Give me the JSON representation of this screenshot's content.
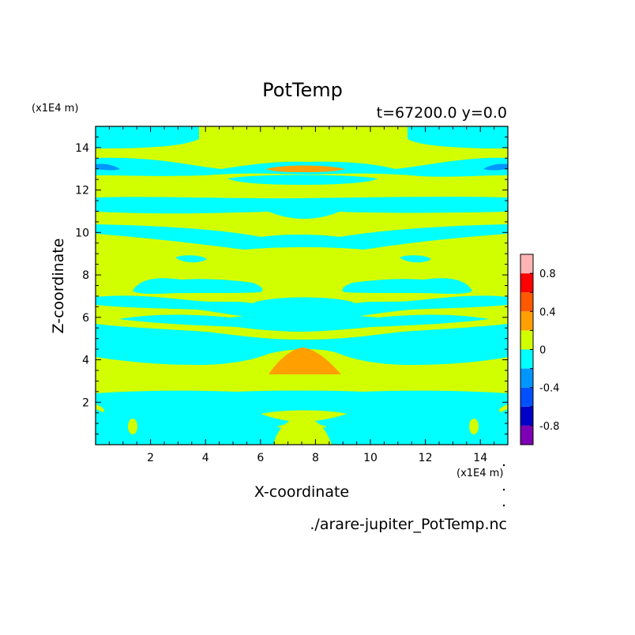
{
  "chart_data": {
    "type": "contour",
    "title": "PotTemp",
    "subtitle": "t=67200.0 y=0.0",
    "xlabel": "X-coordinate",
    "ylabel": "Z-coordinate",
    "x_unit": "(x1E4 m)",
    "y_unit": "(x1E4 m)",
    "source": "./arare-jupiter_PotTemp.nc",
    "xlim": [
      0,
      15
    ],
    "ylim": [
      0,
      15
    ],
    "x_ticks": [
      2,
      4,
      6,
      8,
      10,
      12,
      14
    ],
    "y_ticks": [
      2,
      4,
      6,
      8,
      10,
      12,
      14
    ],
    "colorbar": {
      "levels": [
        -1.0,
        -0.8,
        -0.6,
        -0.4,
        -0.2,
        0.0,
        0.2,
        0.4,
        0.6,
        0.8,
        1.0
      ],
      "colors": [
        "#7e00b4",
        "#0000c8",
        "#0050ff",
        "#0096ff",
        "#00ffff",
        "#d2ff00",
        "#ffa000",
        "#ff5a00",
        "#ff0000",
        "#ffb4b4"
      ],
      "tick_labels": [
        "-0.8",
        "-0.4",
        "0",
        "0.4",
        "0.8"
      ]
    },
    "field_description_levels": {
      "background": "0 to 0.2",
      "bands": "-0.2 to 0",
      "warm_patches": "0.2 to 0.4",
      "cold_patches": "-0.4 to -0.2"
    }
  }
}
